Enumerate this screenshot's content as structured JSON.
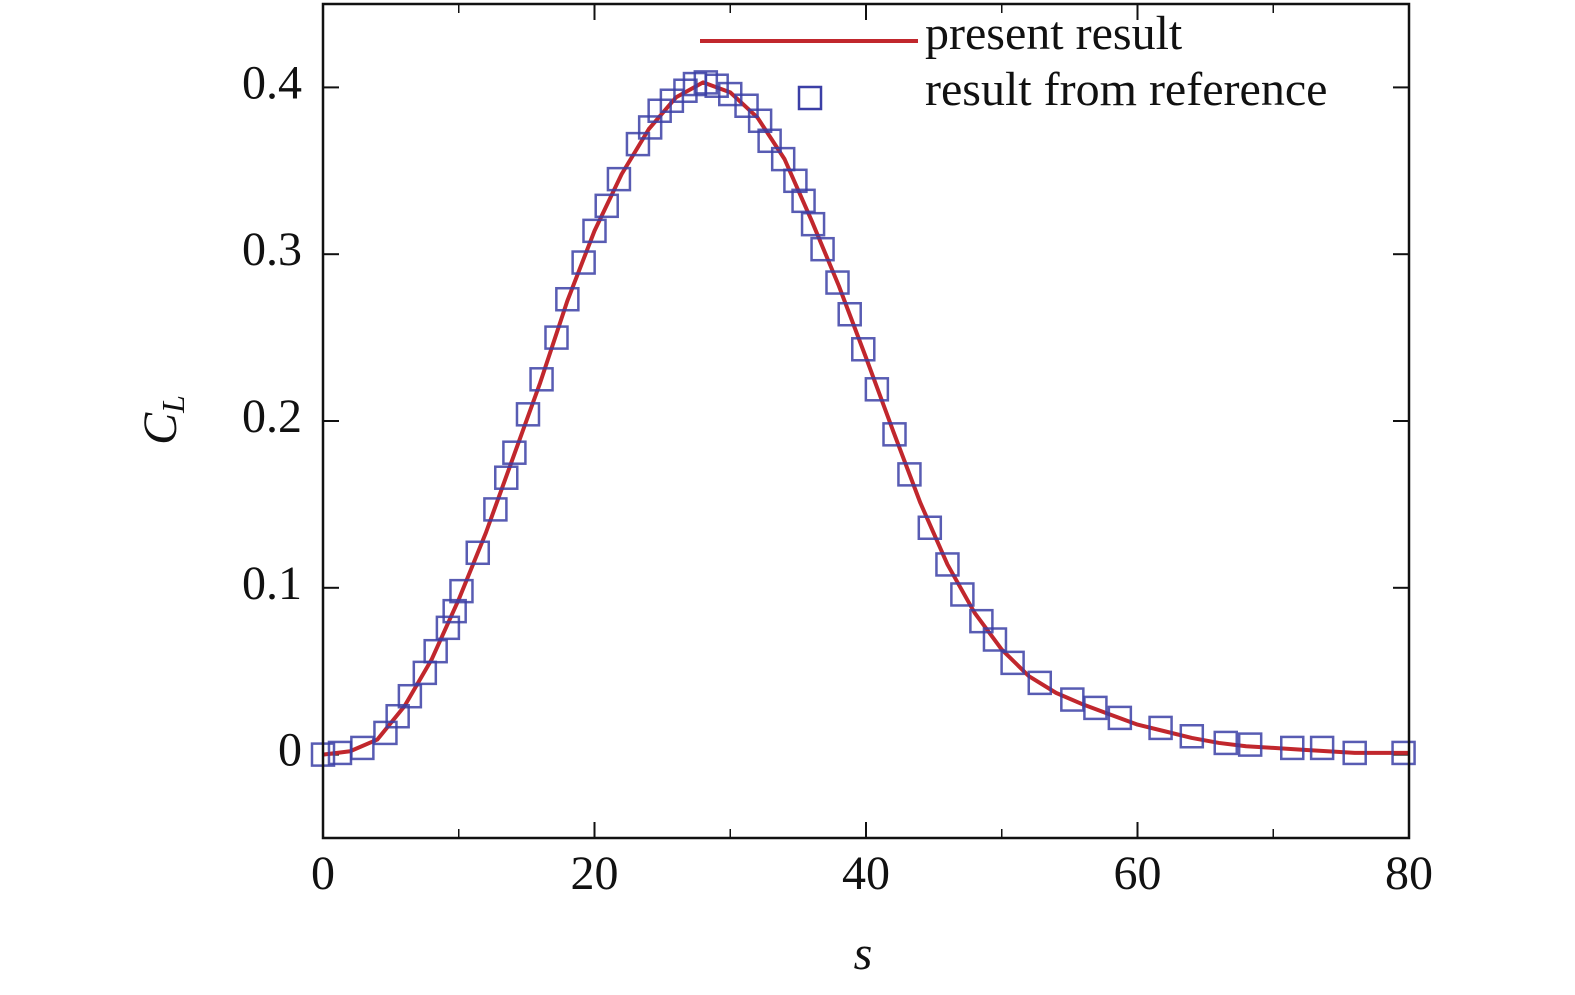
{
  "chart_data": {
    "type": "line",
    "xlabel": "s",
    "ylabel": {
      "main": "C",
      "sub": "L"
    },
    "xlim": [
      0,
      80
    ],
    "ylim": [
      -0.05,
      0.45
    ],
    "xticks": [
      0,
      20,
      40,
      60,
      80
    ],
    "xticks_minor": [
      10,
      30,
      50,
      70
    ],
    "yticks": [
      0,
      0.1,
      0.2,
      0.3,
      0.4
    ],
    "legend": "upper right",
    "series": [
      {
        "name": "present result",
        "type": "line",
        "color": "#c1272d",
        "x": [
          0,
          2,
          4,
          6,
          8,
          10,
          12,
          14,
          16,
          18,
          20,
          22,
          24,
          26,
          28,
          30,
          32,
          34,
          36,
          38,
          40,
          42,
          44,
          46,
          48,
          50,
          52,
          54,
          56,
          58,
          60,
          62,
          64,
          66,
          68,
          70,
          72,
          74,
          76,
          78,
          80
        ],
        "values": [
          0,
          0.002,
          0.009,
          0.029,
          0.057,
          0.093,
          0.133,
          0.178,
          0.223,
          0.272,
          0.314,
          0.348,
          0.375,
          0.394,
          0.403,
          0.397,
          0.382,
          0.357,
          0.32,
          0.281,
          0.238,
          0.194,
          0.151,
          0.114,
          0.085,
          0.063,
          0.047,
          0.037,
          0.03,
          0.024,
          0.018,
          0.014,
          0.01,
          0.007,
          0.005,
          0.004,
          0.003,
          0.002,
          0.001,
          0.001,
          0.001
        ]
      },
      {
        "name": "result from reference",
        "type": "scatter",
        "color": "#3b3fa6",
        "x": [
          0,
          1.25,
          2.9,
          4.6,
          5.5,
          6.4,
          7.5,
          8.3,
          9.2,
          9.7,
          10.2,
          11.4,
          12.7,
          13.5,
          14.1,
          15.1,
          16.1,
          17.2,
          18.0,
          19.2,
          20.0,
          20.9,
          21.8,
          23.2,
          24.1,
          24.8,
          25.7,
          26.7,
          27.4,
          28.2,
          29.0,
          30.0,
          31.2,
          32.2,
          32.9,
          33.9,
          34.8,
          35.4,
          36.1,
          36.8,
          37.9,
          38.8,
          39.8,
          40.8,
          42.1,
          43.2,
          44.7,
          46.0,
          47.1,
          48.5,
          49.5,
          50.8,
          52.8,
          55.2,
          56.9,
          58.7,
          61.7,
          64.0,
          66.5,
          68.3,
          71.4,
          73.6,
          76.0,
          79.6
        ],
        "values": [
          0,
          0.001,
          0.004,
          0.013,
          0.023,
          0.035,
          0.049,
          0.062,
          0.076,
          0.086,
          0.098,
          0.121,
          0.147,
          0.166,
          0.181,
          0.204,
          0.225,
          0.25,
          0.273,
          0.295,
          0.314,
          0.329,
          0.345,
          0.366,
          0.376,
          0.386,
          0.392,
          0.398,
          0.402,
          0.403,
          0.401,
          0.396,
          0.389,
          0.38,
          0.368,
          0.357,
          0.344,
          0.332,
          0.318,
          0.303,
          0.283,
          0.264,
          0.243,
          0.219,
          0.192,
          0.168,
          0.136,
          0.114,
          0.096,
          0.08,
          0.069,
          0.055,
          0.043,
          0.033,
          0.028,
          0.022,
          0.016,
          0.011,
          0.007,
          0.006,
          0.004,
          0.004,
          0.001,
          0.001
        ]
      }
    ]
  }
}
